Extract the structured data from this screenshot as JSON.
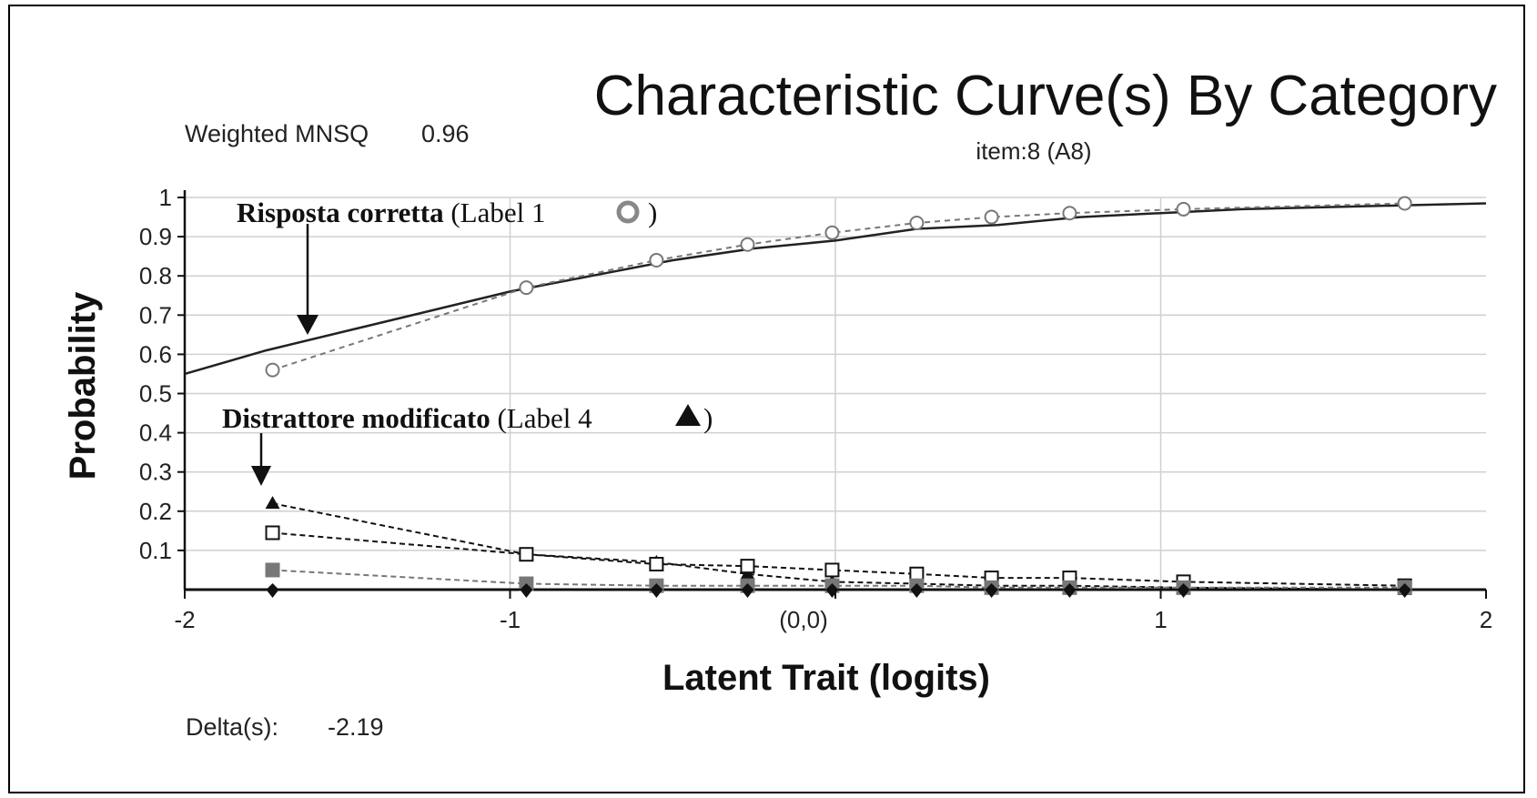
{
  "weighted_mnsq_label": "Weighted MNSQ",
  "weighted_mnsq_value": "0.96",
  "delta_label": "Delta(s):",
  "delta_value": "-2.19",
  "origin_label": "(0,0)",
  "annotations": {
    "correct_main": "Risposta corretta",
    "correct_label": "(Label 1",
    "correct_close": ")",
    "distractor_main": "Distrattore modificato",
    "distractor_label": "(Label 4",
    "distractor_close": ")"
  },
  "colors": {
    "model_curve": "#222222",
    "observed": "#777777",
    "dark": "#111111",
    "grid": "#d0d0d0"
  },
  "chart_data": {
    "type": "line",
    "title": "Characteristic Curve(s) By Category",
    "subtitle": "item:8 (A8)",
    "xlabel": "Latent Trait (logits)",
    "ylabel": "Probability",
    "xlim": [
      -2,
      2
    ],
    "ylim": [
      0,
      1
    ],
    "x_ticks": [
      "-2",
      "-1",
      "1",
      "2"
    ],
    "y_ticks": [
      "1",
      "0.9",
      "0.8",
      "0.7",
      "0.6",
      "0.5",
      "0.4",
      "0.3",
      "0.2",
      "0.1"
    ],
    "grid": true,
    "model_curve": {
      "x": [
        -2.0,
        -1.75,
        -1.5,
        -1.25,
        -1.0,
        -0.75,
        -0.5,
        -0.25,
        0.0,
        0.25,
        0.5,
        0.75,
        1.0,
        1.25,
        1.5,
        1.75,
        2.0
      ],
      "y": [
        0.55,
        0.61,
        0.66,
        0.71,
        0.76,
        0.8,
        0.84,
        0.87,
        0.89,
        0.92,
        0.93,
        0.95,
        0.96,
        0.97,
        0.975,
        0.98,
        0.985
      ]
    },
    "observed_x": [
      -1.73,
      -0.95,
      -0.55,
      -0.27,
      -0.01,
      0.25,
      0.48,
      0.72,
      1.07,
      1.75
    ],
    "series": [
      {
        "marker": "circle",
        "values": [
          0.56,
          0.77,
          0.84,
          0.88,
          0.91,
          0.935,
          0.95,
          0.96,
          0.97,
          0.985
        ]
      },
      {
        "marker": "triangle",
        "values": [
          0.22,
          0.09,
          0.07,
          0.04,
          0.02,
          0.015,
          0.01,
          0.01,
          0.005,
          0.0
        ]
      },
      {
        "marker": "square-open",
        "values": [
          0.145,
          0.09,
          0.065,
          0.06,
          0.05,
          0.04,
          0.03,
          0.03,
          0.02,
          0.01
        ]
      },
      {
        "marker": "square-filled",
        "values": [
          0.05,
          0.015,
          0.01,
          0.01,
          0.01,
          0.01,
          0.005,
          0.005,
          0.005,
          0.005
        ]
      },
      {
        "marker": "diamond",
        "values": [
          0.0,
          0.0,
          0.0,
          0.0,
          0.0,
          0.0,
          0.0,
          0.0,
          0.0,
          0.0
        ]
      }
    ]
  }
}
